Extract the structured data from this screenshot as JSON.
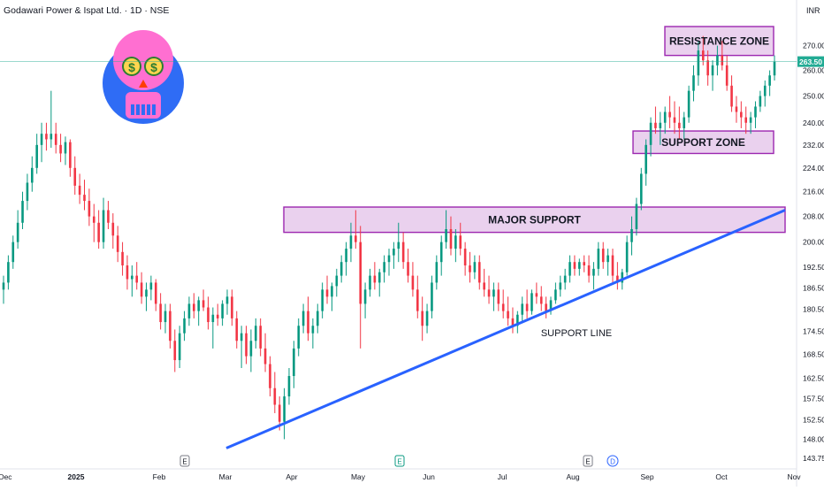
{
  "header": {
    "title": "Godawari Power & Ispat Ltd. · 1D · NSE",
    "currency": "INR"
  },
  "chart_data": {
    "type": "candlestick",
    "price_axis": {
      "ticks": [
        "270.00",
        "260.00",
        "250.00",
        "240.00",
        "232.00",
        "224.00",
        "216.00",
        "208.00",
        "200.00",
        "192.50",
        "186.50",
        "180.50",
        "174.50",
        "168.50",
        "162.50",
        "157.50",
        "152.50",
        "148.00",
        "143.75"
      ],
      "scale": "log"
    },
    "time_axis": {
      "ticks": [
        "Dec",
        "2025",
        "Feb",
        "Mar",
        "Apr",
        "May",
        "Jun",
        "Jul",
        "Aug",
        "Sep",
        "Oct",
        "Nov"
      ]
    },
    "last_price": "263.50",
    "colors": {
      "up": "#089981",
      "down": "#f23645",
      "zone_fill": "#e1bee7",
      "zone_border": "#9c27b0",
      "trendline": "#2962ff",
      "price_line": "#22ab94"
    },
    "events": [
      {
        "label": "E",
        "month": "Feb"
      },
      {
        "label": "E",
        "month": "May"
      },
      {
        "label": "E",
        "month": "Aug"
      },
      {
        "label": "D",
        "month": "Aug"
      }
    ],
    "annotations": {
      "resistance": {
        "label": "RESISTANCE ZONE",
        "low": 266,
        "high": 278
      },
      "support": {
        "label": "SUPPORT ZONE",
        "low": 229,
        "high": 237
      },
      "major": {
        "label": "MAJOR SUPPORT",
        "low": 203,
        "high": 211
      },
      "trendline": {
        "label": "SUPPORT LINE",
        "start_price": 146,
        "end_price": 210
      }
    },
    "candles_summary": "approximated daily series from Dec 2024 to late Oct 2025"
  },
  "series": [
    [
      186,
      190,
      182,
      188
    ],
    [
      188,
      196,
      186,
      194
    ],
    [
      194,
      202,
      192,
      200
    ],
    [
      200,
      210,
      198,
      206
    ],
    [
      206,
      216,
      204,
      213
    ],
    [
      213,
      222,
      210,
      219
    ],
    [
      219,
      228,
      216,
      224
    ],
    [
      224,
      236,
      222,
      232
    ],
    [
      232,
      240,
      226,
      236
    ],
    [
      236,
      240,
      230,
      234
    ],
    [
      234,
      252,
      231,
      236
    ],
    [
      236,
      240,
      229,
      232
    ],
    [
      232,
      236,
      226,
      229
    ],
    [
      229,
      235,
      225,
      233
    ],
    [
      233,
      234,
      221,
      224
    ],
    [
      224,
      228,
      215,
      218
    ],
    [
      218,
      222,
      212,
      215
    ],
    [
      215,
      220,
      210,
      213
    ],
    [
      213,
      217,
      205,
      208
    ],
    [
      208,
      212,
      200,
      206
    ],
    [
      206,
      210,
      198,
      200
    ],
    [
      200,
      214,
      198,
      210
    ],
    [
      210,
      213,
      204,
      206
    ],
    [
      206,
      209,
      198,
      202
    ],
    [
      202,
      205,
      194,
      197
    ],
    [
      197,
      200,
      190,
      193
    ],
    [
      193,
      196,
      186,
      189
    ],
    [
      189,
      193,
      184,
      190
    ],
    [
      190,
      194,
      186,
      188
    ],
    [
      188,
      191,
      182,
      184
    ],
    [
      184,
      188,
      180,
      186
    ],
    [
      186,
      190,
      183,
      188
    ],
    [
      188,
      189,
      180,
      182
    ],
    [
      182,
      185,
      175,
      177
    ],
    [
      177,
      182,
      174,
      180
    ],
    [
      180,
      182,
      170,
      172
    ],
    [
      172,
      175,
      164,
      167
    ],
    [
      167,
      176,
      165,
      174
    ],
    [
      174,
      180,
      172,
      178
    ],
    [
      178,
      184,
      176,
      182
    ],
    [
      182,
      185,
      178,
      180
    ],
    [
      180,
      184,
      176,
      183
    ],
    [
      183,
      186,
      180,
      181
    ],
    [
      181,
      184,
      175,
      177
    ],
    [
      177,
      181,
      170,
      179
    ],
    [
      179,
      182,
      176,
      178
    ],
    [
      178,
      183,
      176,
      182
    ],
    [
      182,
      186,
      179,
      184
    ],
    [
      184,
      186,
      176,
      178
    ],
    [
      178,
      180,
      170,
      172
    ],
    [
      172,
      176,
      165,
      174
    ],
    [
      174,
      176,
      166,
      168
    ],
    [
      168,
      175,
      164,
      172
    ],
    [
      172,
      178,
      170,
      176
    ],
    [
      176,
      178,
      168,
      170
    ],
    [
      170,
      174,
      164,
      166
    ],
    [
      166,
      168,
      158,
      160
    ],
    [
      160,
      164,
      154,
      156
    ],
    [
      156,
      158,
      150,
      152
    ],
    [
      152,
      160,
      148,
      158
    ],
    [
      158,
      165,
      156,
      163
    ],
    [
      163,
      172,
      160,
      170
    ],
    [
      170,
      178,
      168,
      176
    ],
    [
      176,
      182,
      174,
      180
    ],
    [
      180,
      184,
      172,
      174
    ],
    [
      174,
      178,
      170,
      176
    ],
    [
      176,
      182,
      174,
      180
    ],
    [
      180,
      188,
      178,
      186
    ],
    [
      186,
      190,
      182,
      184
    ],
    [
      184,
      188,
      180,
      187
    ],
    [
      187,
      192,
      184,
      190
    ],
    [
      190,
      196,
      188,
      194
    ],
    [
      194,
      200,
      190,
      198
    ],
    [
      198,
      206,
      194,
      202
    ],
    [
      202,
      210,
      198,
      200
    ],
    [
      200,
      205,
      170,
      182
    ],
    [
      182,
      188,
      178,
      186
    ],
    [
      186,
      192,
      184,
      190
    ],
    [
      190,
      194,
      186,
      188
    ],
    [
      188,
      192,
      184,
      191
    ],
    [
      191,
      196,
      188,
      194
    ],
    [
      194,
      198,
      190,
      196
    ],
    [
      196,
      200,
      192,
      198
    ],
    [
      198,
      206,
      194,
      200
    ],
    [
      200,
      203,
      192,
      194
    ],
    [
      194,
      198,
      188,
      190
    ],
    [
      190,
      194,
      184,
      186
    ],
    [
      186,
      190,
      178,
      180
    ],
    [
      180,
      184,
      172,
      176
    ],
    [
      176,
      182,
      174,
      180
    ],
    [
      180,
      190,
      178,
      188
    ],
    [
      188,
      196,
      186,
      194
    ],
    [
      194,
      202,
      190,
      200
    ],
    [
      200,
      210,
      198,
      204
    ],
    [
      204,
      208,
      196,
      198
    ],
    [
      198,
      204,
      194,
      202
    ],
    [
      202,
      206,
      196,
      198
    ],
    [
      198,
      200,
      190,
      193
    ],
    [
      193,
      197,
      188,
      191
    ],
    [
      191,
      196,
      189,
      194
    ],
    [
      194,
      196,
      186,
      188
    ],
    [
      188,
      192,
      184,
      186
    ],
    [
      186,
      190,
      182,
      184
    ],
    [
      184,
      188,
      180,
      186
    ],
    [
      186,
      188,
      180,
      182
    ],
    [
      182,
      186,
      178,
      180
    ],
    [
      180,
      184,
      176,
      178
    ],
    [
      178,
      181,
      174,
      176
    ],
    [
      176,
      180,
      174,
      179
    ],
    [
      179,
      184,
      177,
      182
    ],
    [
      182,
      186,
      178,
      180
    ],
    [
      180,
      186,
      179,
      185
    ],
    [
      185,
      188,
      182,
      184
    ],
    [
      184,
      187,
      180,
      182
    ],
    [
      182,
      184,
      178,
      180
    ],
    [
      180,
      184,
      179,
      183
    ],
    [
      183,
      188,
      182,
      186
    ],
    [
      186,
      190,
      184,
      188
    ],
    [
      188,
      192,
      186,
      190
    ],
    [
      190,
      196,
      188,
      194
    ],
    [
      194,
      196,
      190,
      192
    ],
    [
      192,
      195,
      190,
      194
    ],
    [
      194,
      196,
      191,
      193
    ],
    [
      193,
      196,
      188,
      190
    ],
    [
      190,
      194,
      186,
      192
    ],
    [
      192,
      200,
      190,
      198
    ],
    [
      198,
      200,
      192,
      194
    ],
    [
      194,
      198,
      190,
      196
    ],
    [
      196,
      198,
      188,
      190
    ],
    [
      190,
      194,
      186,
      188
    ],
    [
      188,
      192,
      186,
      191
    ],
    [
      191,
      202,
      190,
      200
    ],
    [
      200,
      208,
      196,
      204
    ],
    [
      204,
      214,
      202,
      212
    ],
    [
      212,
      224,
      210,
      222
    ],
    [
      222,
      234,
      218,
      232
    ],
    [
      232,
      242,
      228,
      240
    ],
    [
      240,
      246,
      236,
      238
    ],
    [
      238,
      244,
      232,
      240
    ],
    [
      240,
      246,
      236,
      244
    ],
    [
      244,
      250,
      238,
      242
    ],
    [
      242,
      248,
      236,
      240
    ],
    [
      240,
      246,
      234,
      238
    ],
    [
      238,
      244,
      234,
      242
    ],
    [
      242,
      254,
      240,
      252
    ],
    [
      252,
      262,
      248,
      258
    ],
    [
      258,
      272,
      254,
      268
    ],
    [
      268,
      274,
      262,
      264
    ],
    [
      264,
      268,
      254,
      258
    ],
    [
      258,
      264,
      252,
      262
    ],
    [
      262,
      270,
      258,
      266
    ],
    [
      266,
      272,
      260,
      262
    ],
    [
      262,
      266,
      252,
      254
    ],
    [
      254,
      258,
      244,
      246
    ],
    [
      246,
      250,
      240,
      244
    ],
    [
      244,
      248,
      238,
      242
    ],
    [
      242,
      246,
      236,
      240
    ],
    [
      240,
      244,
      236,
      242
    ],
    [
      242,
      248,
      238,
      246
    ],
    [
      246,
      252,
      244,
      250
    ],
    [
      250,
      256,
      246,
      254
    ],
    [
      254,
      260,
      250,
      258
    ],
    [
      258,
      266,
      256,
      263.5
    ]
  ]
}
